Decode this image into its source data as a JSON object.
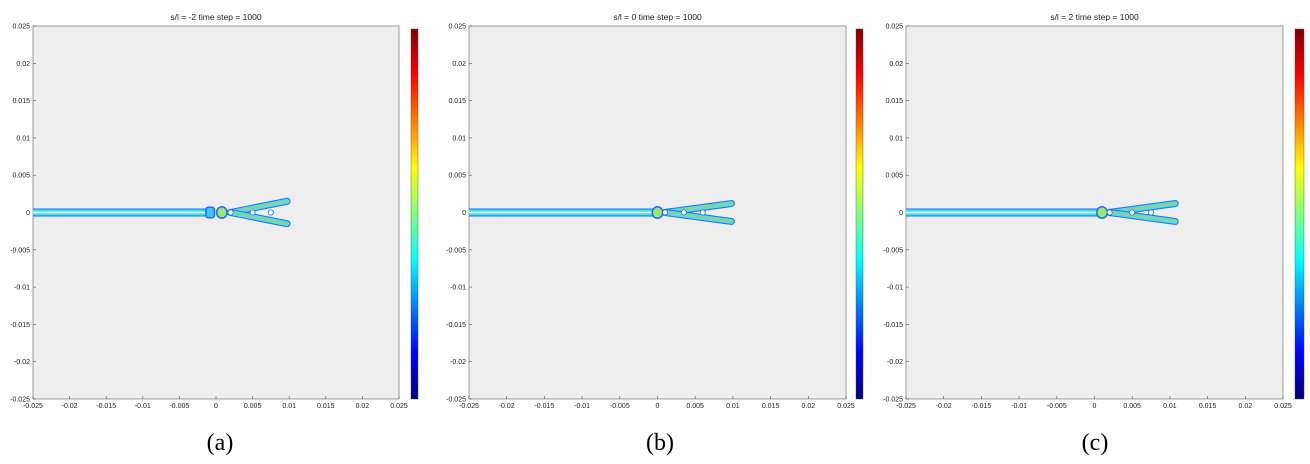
{
  "chart_data": [
    {
      "type": "heatmap",
      "title": "s/l = -2 time step = 1000",
      "caption": "(a)",
      "xlim": [
        -0.025,
        0.025
      ],
      "ylim": [
        -0.025,
        0.025
      ],
      "x_ticks": [
        "-0.025",
        "-0.02",
        "-0.015",
        "-0.01",
        "-0.005",
        "0",
        "0.005",
        "0.01",
        "0.015",
        "0.02",
        "0.025"
      ],
      "y_ticks": [
        "0.025",
        "0.02",
        "0.015",
        "0.01",
        "0.005",
        "0",
        "-0.005",
        "-0.01",
        "-0.015",
        "-0.02",
        "-0.025"
      ],
      "colorbar": "jet",
      "crack": {
        "line": {
          "x_start": -0.025,
          "x_end": -0.001,
          "y": 0
        },
        "damage_blob": [
          -0.0008,
          0
        ],
        "bulb": [
          0.0008,
          0
        ],
        "branch_start": [
          0.002,
          0
        ],
        "branch_upper_tip": [
          0.0097,
          0.0015
        ],
        "branch_lower_tip": [
          0.0097,
          -0.0015
        ],
        "holes": [
          [
            0.002,
            0
          ],
          [
            0.005,
            0
          ],
          [
            0.0075,
            0
          ]
        ]
      }
    },
    {
      "type": "heatmap",
      "title": "s/l = 0 time step = 1000",
      "caption": "(b)",
      "xlim": [
        -0.025,
        0.025
      ],
      "ylim": [
        -0.025,
        0.025
      ],
      "x_ticks": [
        "-0.025",
        "-0.02",
        "-0.015",
        "-0.01",
        "-0.005",
        "0",
        "0.005",
        "0.01",
        "0.015",
        "0.02",
        "0.025"
      ],
      "y_ticks": [
        "0.025",
        "0.02",
        "0.015",
        "0.01",
        "0.005",
        "0",
        "-0.005",
        "-0.01",
        "-0.015",
        "-0.02",
        "-0.025"
      ],
      "colorbar": "jet",
      "crack": {
        "line": {
          "x_start": -0.025,
          "x_end": -0.0003,
          "y": 0
        },
        "damage_blob": null,
        "bulb": [
          0,
          0
        ],
        "branch_start": [
          0.001,
          0
        ],
        "branch_upper_tip": [
          0.0098,
          0.0012
        ],
        "branch_lower_tip": [
          0.0098,
          -0.0012
        ],
        "holes": [
          [
            0.001,
            0
          ],
          [
            0.0035,
            0
          ],
          [
            0.006,
            0
          ]
        ]
      }
    },
    {
      "type": "heatmap",
      "title": "s/l = 2 time step = 1000",
      "caption": "(c)",
      "xlim": [
        -0.025,
        0.025
      ],
      "ylim": [
        -0.025,
        0.025
      ],
      "x_ticks": [
        "-0.025",
        "-0.02",
        "-0.015",
        "-0.01",
        "-0.005",
        "0",
        "0.005",
        "0.01",
        "0.015",
        "0.02",
        "0.025"
      ],
      "y_ticks": [
        "0.025",
        "0.02",
        "0.015",
        "0.01",
        "0.005",
        "0",
        "-0.005",
        "-0.01",
        "-0.015",
        "-0.02",
        "-0.025"
      ],
      "colorbar": "jet",
      "crack": {
        "line": {
          "x_start": -0.025,
          "x_end": 0.0005,
          "y": 0
        },
        "damage_blob": null,
        "bulb": [
          0.001,
          0
        ],
        "branch_start": [
          0.002,
          0
        ],
        "branch_upper_tip": [
          0.0107,
          0.0012
        ],
        "branch_lower_tip": [
          0.0107,
          -0.0012
        ],
        "holes": [
          [
            0.002,
            0
          ],
          [
            0.005,
            0
          ],
          [
            0.0075,
            0
          ]
        ]
      }
    }
  ]
}
